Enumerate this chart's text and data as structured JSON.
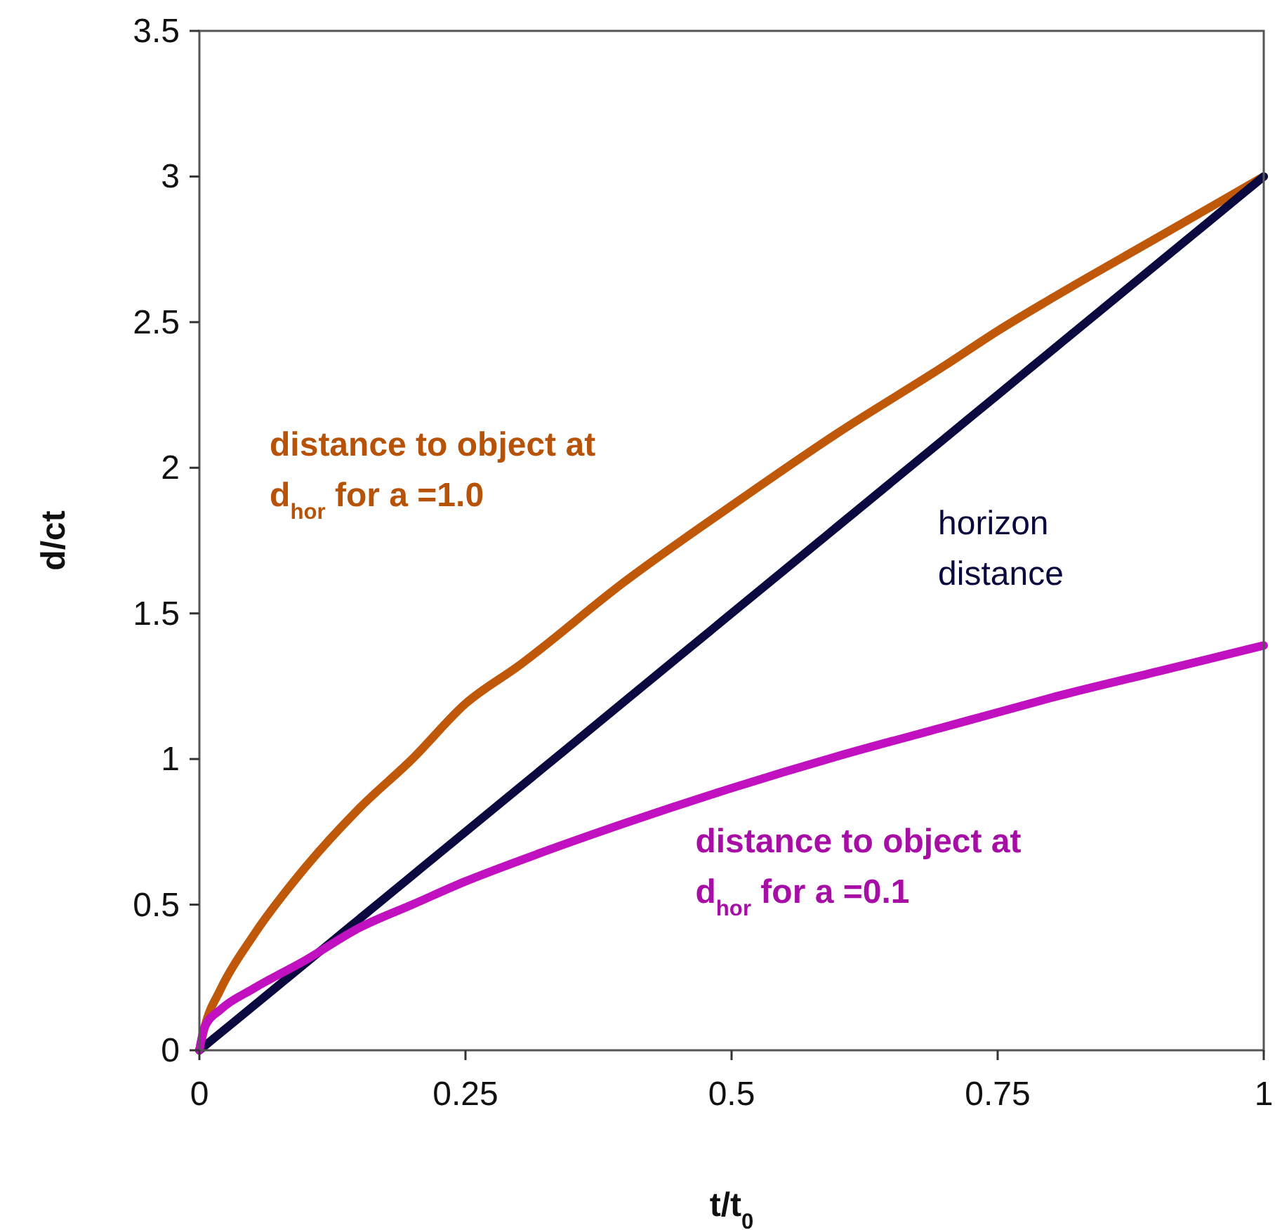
{
  "chart_data": {
    "type": "line",
    "xlabel": "t/t$_{0}$",
    "ylabel": "d/ct",
    "xlim": [
      0,
      1
    ],
    "xticks": [
      0,
      0.25,
      0.5,
      0.75,
      1
    ],
    "ylim": [
      0,
      3.5
    ],
    "yticks": [
      0,
      0.5,
      1,
      1.5,
      2,
      2.5,
      3,
      3.5
    ],
    "grid": false,
    "marker": "none",
    "line_style": "solid",
    "x": [
      0,
      0.005,
      0.02,
      0.05,
      0.1,
      0.15,
      0.2,
      0.25,
      0.3,
      0.4,
      0.5,
      0.6,
      0.7,
      0.75,
      0.8,
      0.9,
      1
    ],
    "series": [
      {
        "color": "#c0580a",
        "values": [
          0,
          0.08,
          0.21,
          0.39,
          0.63,
          0.83,
          1.0,
          1.19,
          1.32,
          1.61,
          1.87,
          2.12,
          2.35,
          2.47,
          2.58,
          2.79,
          3
        ]
      },
      {
        "color": "#0a0a40",
        "values": [
          0,
          0.015,
          0.06,
          0.15,
          0.3,
          0.45,
          0.6,
          0.75,
          0.9,
          1.2,
          1.5,
          1.8,
          2.1,
          2.25,
          2.4,
          2.7,
          3
        ]
      },
      {
        "color": "#c010c0",
        "values": [
          0,
          0.08,
          0.14,
          0.21,
          0.31,
          0.42,
          0.5,
          0.58,
          0.65,
          0.78,
          0.9,
          1.01,
          1.11,
          1.16,
          1.21,
          1.3,
          1.39
        ]
      }
    ],
    "annotations": [
      "distance to object at\nd$_{hor}$ for a =1.0",
      "horizon\ndistance",
      "distance to object at\nd$_{hor}$ for a =0.1"
    ]
  }
}
